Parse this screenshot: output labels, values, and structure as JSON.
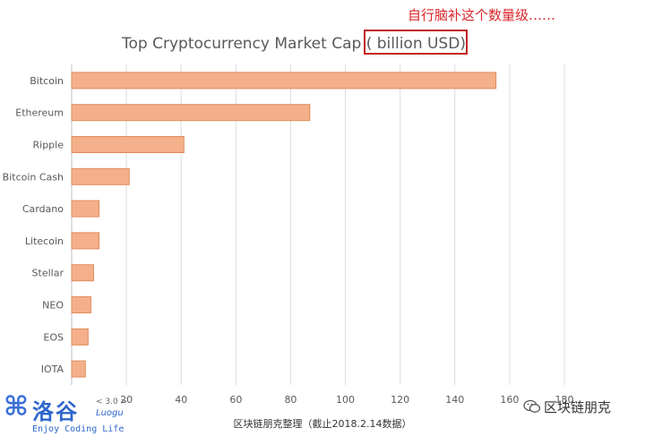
{
  "annotation": {
    "text": "自行脑补这个数量级……",
    "color": "#d9262b"
  },
  "source_note": "区块链朋克整理（截止2018.2.14数据）",
  "watermarks": {
    "luogu_name": "洛谷",
    "luogu_version": "< 3.0 >",
    "luogu_sub": "Luogu",
    "luogu_tagline": "Enjoy Coding Life",
    "luogu_mark_icon": "luogu-logo-icon",
    "wechat_icon": "wechat-icon",
    "wechat_account": "区块链朋克"
  },
  "chart_data": {
    "type": "bar",
    "orientation": "horizontal",
    "title": "Top Cryptocurrency Market Cap ( billion USD)",
    "categories": [
      "Bitcoin",
      "Ethereum",
      "Ripple",
      "Bitcoin Cash",
      "Cardano",
      "Litecoin",
      "Stellar",
      "NEO",
      "EOS",
      "IOTA"
    ],
    "values": [
      155,
      87,
      41,
      21,
      10,
      10,
      8,
      7,
      6,
      5
    ],
    "xlim": [
      0,
      180
    ],
    "xticks": [
      0,
      20,
      40,
      60,
      80,
      100,
      120,
      140,
      160,
      180
    ],
    "xtick_labels": [
      "",
      "20",
      "40",
      "60",
      "80",
      "100",
      "120",
      "140",
      "160",
      "180"
    ],
    "grid": "vertical",
    "bar_fill": "#f4b08a",
    "bar_stroke": "#e08a5c",
    "grid_color": "#dcdcdc",
    "text_color": "#595959"
  }
}
